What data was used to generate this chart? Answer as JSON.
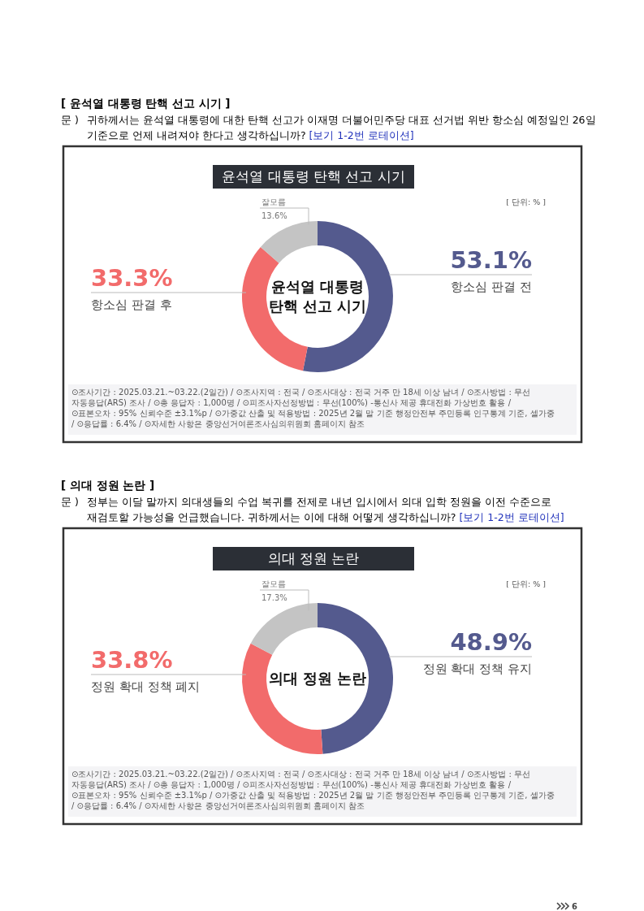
{
  "chart_data": [
    {
      "type": "donut",
      "title": "윤석열 대통령 탄핵 선고 시기",
      "categories": [
        "항소심 판결 전",
        "항소심 판결 후",
        "잘모름"
      ],
      "values": [
        53.1,
        33.3,
        13.6
      ],
      "colors": [
        "#545a8e",
        "#f26b6b",
        "#c4c4c4"
      ],
      "value_labels": [
        "53.1%",
        "33.3%",
        "13.6%"
      ],
      "annotations": [
        "[ 윤석열 대통령 탄핵 선고 시기 ]",
        "문 )",
        "귀하께서는 윤석열 대통령에 대한 탄핵 선고가 이재명 더불어민주당 대표 선거법 위반 항소심 예정일인 26일 기준으로 언제 내려져야 한다고 생각하십니까?",
        "[보기 1-2번 로테이션]",
        "윤석열 대통령\n탄핵 선고 시기",
        "[ 단위: % ]",
        "⊙조사기간 : 2025.03.21.~03.22.(2일간) / ⊙조사지역 : 전국 / ⊙조사대상 : 전국 거주 만 18세 이상 남녀 / ⊙조사방법 : 무선 자동응답(ARS) 조사 / ⊙총 응답자 : 1,000명 / ⊙피조사자선정방법 : 무선(100%) -통신사 제공 휴대전화 가상번호 활용 / ⊙표본오차 : 95% 신뢰수준 ±3.1%p / ⊙가중값 산출 및 적용방법 : 2025년 2월 말 기준 행정안전부 주민등록 인구통계 기준, 셀가중 / ⊙응답률 : 6.4% / ⊙자세한 사항은 중앙선거여론조사심의위원회 홈페이지 참조"
      ]
    },
    {
      "type": "donut",
      "title": "의대 정원 논란",
      "categories": [
        "정원 확대 정책 유지",
        "정원 확대 정책 폐지",
        "잘모름"
      ],
      "values": [
        48.9,
        33.8,
        17.3
      ],
      "colors": [
        "#545a8e",
        "#f26b6b",
        "#c4c4c4"
      ],
      "value_labels": [
        "48.9%",
        "33.8%",
        "17.3%"
      ],
      "annotations": [
        "[ 의대 정원 논란 ]",
        "문 )",
        "정부는 이달 말까지 의대생들의 수업 복귀를 전제로 내년 입시에서 의대 입학 정원을 이전 수준으로 재검토할 가능성을 언급했습니다. 귀하께서는 이에 대해 어떻게 생각하십니까?",
        "[보기 1-2번 로테이션]",
        "의대 정원 논란",
        "[ 단위: % ]",
        "⊙조사기간 : 2025.03.21.~03.22.(2일간) / ⊙조사지역 : 전국 / ⊙조사대상 : 전국 거주 만 18세 이상 남녀 / ⊙조사방법 : 무선 자동응답(ARS) 조사 / ⊙총 응답자 : 1,000명 / ⊙피조사자선정방법 : 무선(100%) -통신사 제공 휴대전화 가상번호 활용 / ⊙표본오차 : 95% 신뢰수준 ±3.1%p / ⊙가중값 산출 및 적용방법 : 2025년 2월 말 기준 행정안전부 주민등록 인구통계 기준, 셀가중 / ⊙응답률 : 6.4% / ⊙자세한 사항은 중앙선거여론조사심의위원회 홈페이지 참조",
        "6"
      ]
    }
  ]
}
